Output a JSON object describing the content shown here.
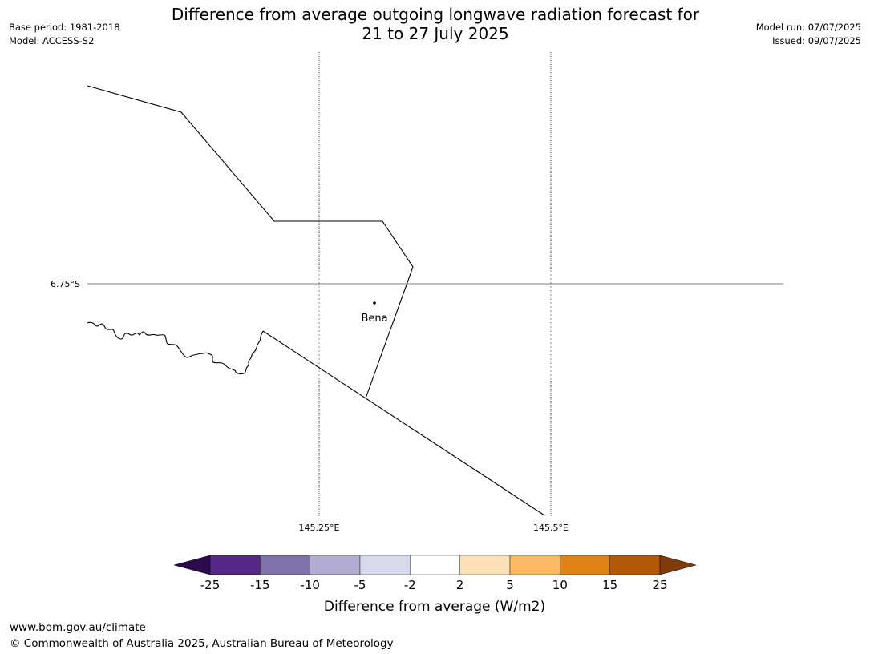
{
  "header": {
    "title_line1": "Difference from average outgoing longwave radiation forecast for",
    "title_line2": "21 to 27 July 2025",
    "base_period": "Base period: 1981-2018",
    "model": "Model: ACCESS-S2",
    "model_run": "Model run: 07/07/2025",
    "issued": "Issued: 09/07/2025"
  },
  "map": {
    "latitude_labels": [
      "6.75°S"
    ],
    "longitude_labels": [
      "145.25°E",
      "145.5°E"
    ],
    "places": [
      {
        "name": "Bena"
      }
    ]
  },
  "legend": {
    "title": "Difference from average (W/m2)",
    "tick_labels": [
      "-25",
      "-15",
      "-10",
      "-5",
      "-2",
      "2",
      "5",
      "10",
      "15",
      "25"
    ],
    "low_extend_color": "#2d0a4e",
    "high_extend_color": "#7f3b08",
    "bins": [
      {
        "color": "#542788"
      },
      {
        "color": "#8073ac"
      },
      {
        "color": "#b2abd2"
      },
      {
        "color": "#d8daeb"
      },
      {
        "color": "#ffffff"
      },
      {
        "color": "#fee0b6"
      },
      {
        "color": "#fdb863"
      },
      {
        "color": "#e08214"
      },
      {
        "color": "#b35806"
      }
    ]
  },
  "footer": {
    "url": "www.bom.gov.au/climate",
    "copyright": "© Commonwealth of Australia 2025, Australian Bureau of Meteorology"
  }
}
